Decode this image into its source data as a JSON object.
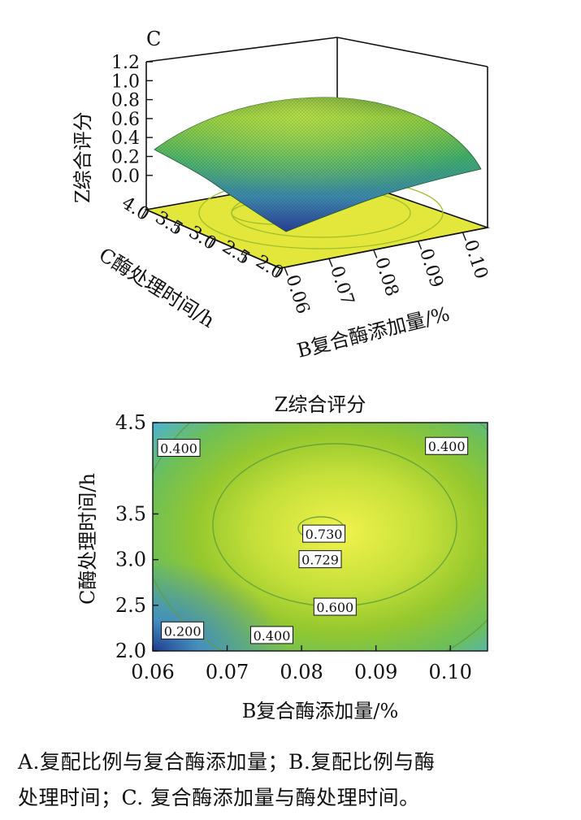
{
  "colors": {
    "plane_fill": "#e6ea3e",
    "surface_high": "#9fd43a",
    "surface_mid": "#3aa56e",
    "surface_low": "#2b3f9e",
    "contour_center": "#eef04a",
    "contour_mid": "#9ccb2e",
    "contour_edge": "#4fb5c8",
    "contour_corner": "#1e3a8a"
  },
  "chart_data": [
    {
      "type": "surface",
      "panel_label": "C",
      "zlabel": "Z综合评分",
      "xlabel": "B复合酶添加量/%",
      "ylabel": "C酶处理时间/h",
      "z_ticks": [
        "1.2",
        "1.0",
        "0.8",
        "0.6",
        "0.4",
        "0.2",
        "0.0"
      ],
      "x_ticks": [
        "0.06",
        "0.07",
        "0.08",
        "0.09",
        "0.10"
      ],
      "y_ticks": [
        "2.0",
        "2.5",
        "3.0",
        "3.5",
        "4.0"
      ],
      "zlim": [
        0,
        1.2
      ],
      "xlim": [
        0.06,
        0.105
      ],
      "ylim": [
        2.0,
        4.0
      ]
    },
    {
      "type": "contour",
      "title": "Z综合评分",
      "xlabel": "B复合酶添加量/%",
      "ylabel": "C酶处理时间/h",
      "x_ticks": [
        "0.06",
        "0.07",
        "0.08",
        "0.09",
        "0.10"
      ],
      "y_ticks": [
        "2.0",
        "2.5",
        "3.0",
        "3.5",
        "4.5"
      ],
      "xlim": [
        0.06,
        0.105
      ],
      "ylim": [
        2.0,
        4.5
      ],
      "contour_labels": [
        {
          "text": "0.400",
          "x": 0.0635,
          "y": 4.22
        },
        {
          "text": "0.400",
          "x": 0.0995,
          "y": 4.24
        },
        {
          "text": "0.730",
          "x": 0.083,
          "y": 3.28
        },
        {
          "text": "0.729",
          "x": 0.0825,
          "y": 3.0
        },
        {
          "text": "0.600",
          "x": 0.0845,
          "y": 2.48
        },
        {
          "text": "0.200",
          "x": 0.064,
          "y": 2.22
        },
        {
          "text": "0.400",
          "x": 0.076,
          "y": 2.17
        }
      ]
    }
  ],
  "caption": {
    "line1": "A.复配比例与复合酶添加量；B.复配比例与酶",
    "line2": "处理时间；C. 复合酶添加量与酶处理时间。"
  }
}
